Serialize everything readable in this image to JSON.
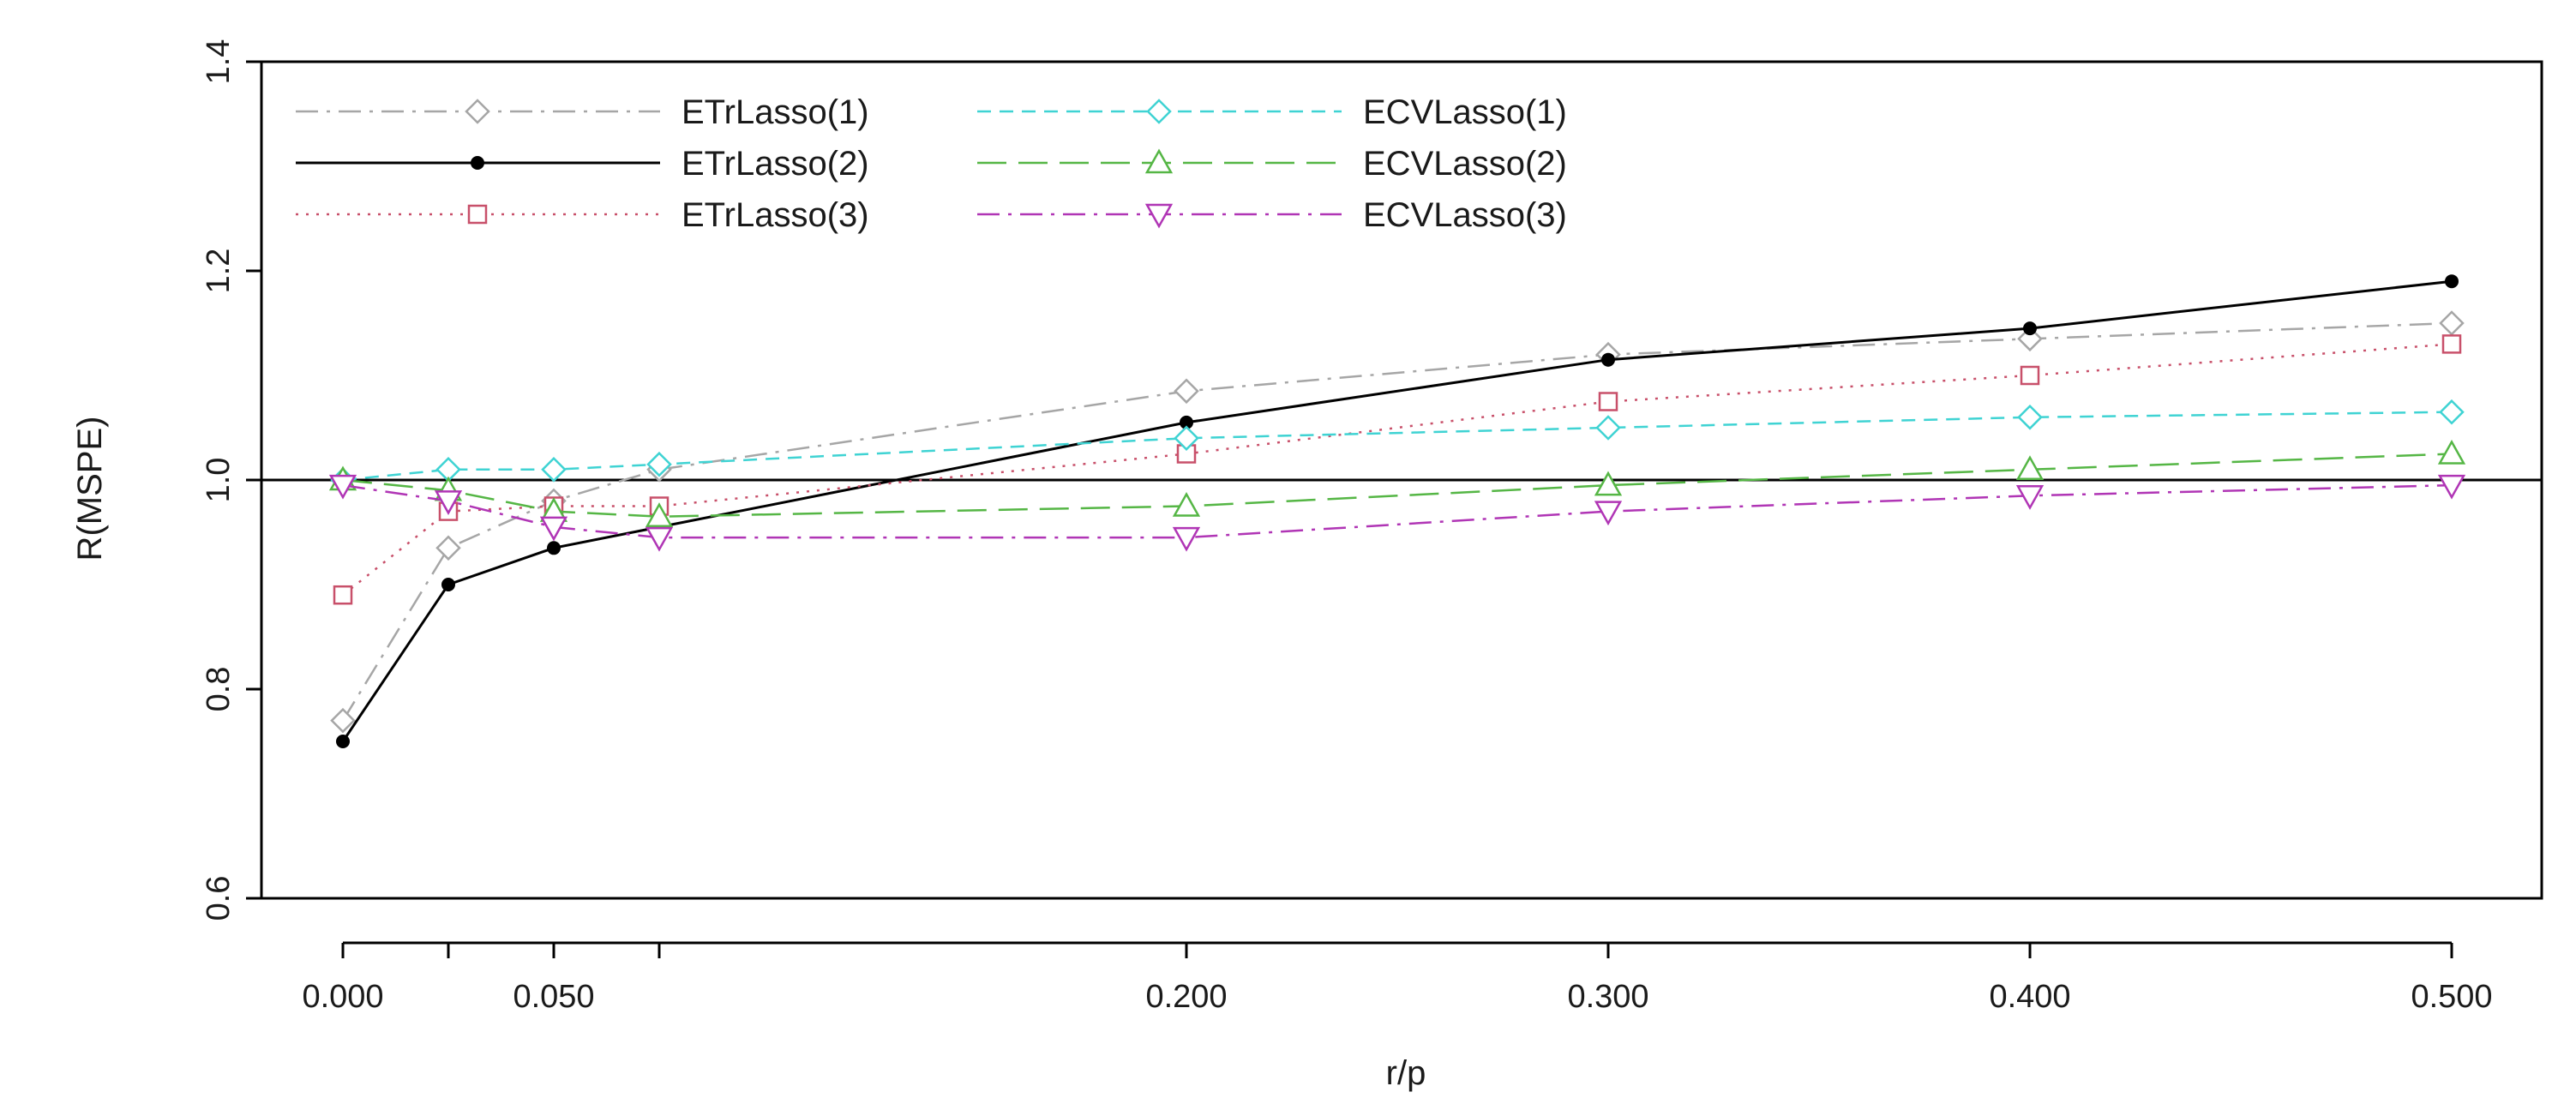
{
  "chart_data": {
    "type": "line",
    "title": "",
    "xlabel": "r/p",
    "ylabel": "R(MSPE)",
    "xlim": [
      0,
      0.5
    ],
    "ylim": [
      0.6,
      1.4
    ],
    "x": [
      0.0,
      0.025,
      0.05,
      0.075,
      0.2,
      0.3,
      0.4,
      0.5
    ],
    "xtick_values": [
      0.0,
      0.025,
      0.05,
      0.075,
      0.2,
      0.3,
      0.4,
      0.5
    ],
    "xtick_labels": [
      "0.000",
      "",
      "0.050",
      "",
      "0.200",
      "0.300",
      "0.400",
      "0.500"
    ],
    "ytick_values": [
      0.6,
      0.8,
      1.0,
      1.2,
      1.4
    ],
    "ytick_labels": [
      "0.6",
      "0.8",
      "1.0",
      "1.2",
      "1.4"
    ],
    "reference_line": 1.0,
    "legend_position": "top-left",
    "series": [
      {
        "name": "ETrLasso(1)",
        "color": "#a6a6a6",
        "marker": "diamond",
        "dash": "dotdash",
        "values": [
          0.77,
          0.935,
          0.98,
          1.01,
          1.085,
          1.12,
          1.135,
          1.15
        ]
      },
      {
        "name": "ETrLasso(2)",
        "color": "#000000",
        "marker": "dot",
        "dash": "solid",
        "values": [
          0.75,
          0.9,
          0.935,
          0.955,
          1.055,
          1.115,
          1.145,
          1.19
        ]
      },
      {
        "name": "ETrLasso(3)",
        "color": "#c8506a",
        "marker": "square",
        "dash": "dotted",
        "values": [
          0.89,
          0.97,
          0.975,
          0.975,
          1.025,
          1.075,
          1.1,
          1.13
        ]
      },
      {
        "name": "ECVLasso(1)",
        "color": "#3fd3d3",
        "marker": "diamond",
        "dash": "dashed",
        "values": [
          1.0,
          1.01,
          1.01,
          1.015,
          1.04,
          1.05,
          1.06,
          1.065
        ]
      },
      {
        "name": "ECVLasso(2)",
        "color": "#55b645",
        "marker": "triangle-up",
        "dash": "longdash",
        "values": [
          1.0,
          0.99,
          0.97,
          0.965,
          0.975,
          0.995,
          1.01,
          1.025
        ]
      },
      {
        "name": "ECVLasso(3)",
        "color": "#b035b5",
        "marker": "triangle-down",
        "dash": "dotdash",
        "values": [
          0.995,
          0.98,
          0.955,
          0.945,
          0.945,
          0.97,
          0.985,
          0.995
        ]
      }
    ]
  }
}
